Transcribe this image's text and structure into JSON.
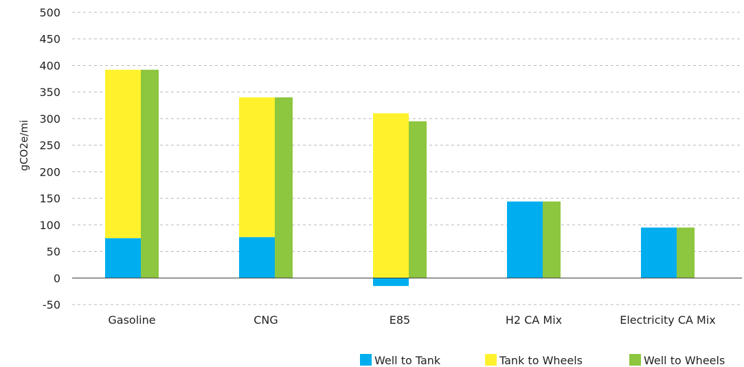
{
  "chart_data": {
    "type": "bar",
    "ylabel": "gCO2e/mi",
    "xlabel": "",
    "ylim": [
      -50,
      500
    ],
    "yticks": [
      500,
      450,
      400,
      350,
      300,
      250,
      200,
      150,
      100,
      50,
      0,
      -50
    ],
    "grid": true,
    "legend_position": "bottom-right",
    "categories": [
      "Gasoline",
      "CNG",
      "E85",
      "H2 CA Mix",
      "Electricity CA Mix"
    ],
    "series": [
      {
        "name": "Well to Tank",
        "color": "#00AEEF",
        "values": [
          75,
          77,
          -15,
          144,
          95
        ],
        "stack": "left"
      },
      {
        "name": "Tank to Wheels",
        "color": "#FFF22D",
        "values": [
          317,
          263,
          310,
          0,
          0
        ],
        "stack": "left"
      },
      {
        "name": "Well to Wheels",
        "color": "#8DC63F",
        "values": [
          392,
          340,
          295,
          144,
          95
        ],
        "stack": "right"
      }
    ]
  }
}
